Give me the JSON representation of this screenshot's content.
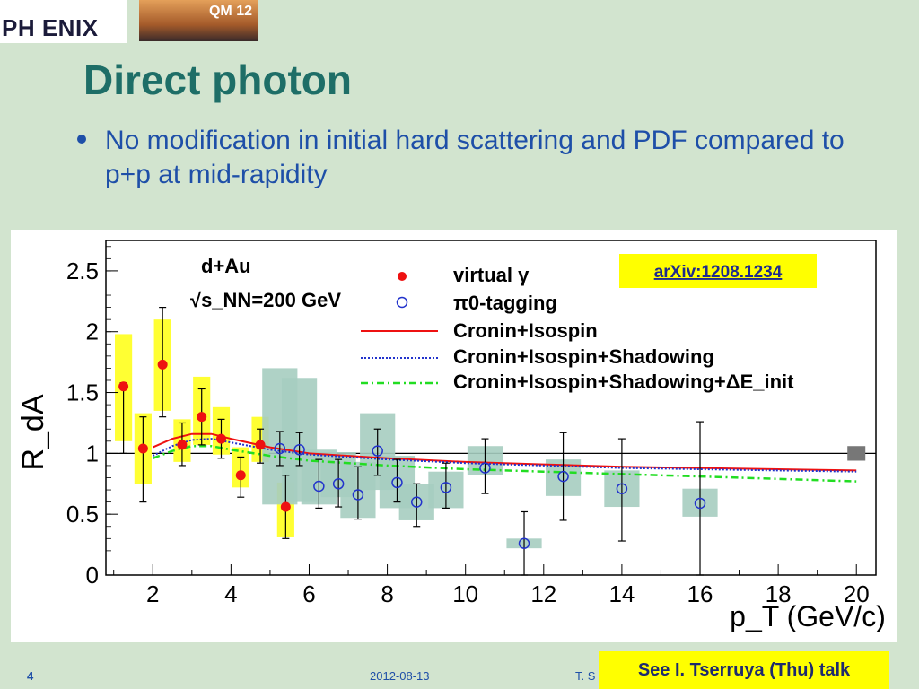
{
  "logo_text": "PH ENIX",
  "conf_badge": "QM 12",
  "title": "Direct photon",
  "bullet": "No modification in initial hard scattering and PDF compared to p+p at mid-rapidity",
  "footer": {
    "page": "4",
    "date": "2012-08-13",
    "author": "T. S",
    "talk": "See I. Tserruya (Thu) talk"
  },
  "chart_data": {
    "type": "scatter",
    "xlabel": "p_T (GeV/c)",
    "ylabel": "R_dA",
    "xlim": [
      0.8,
      20.5
    ],
    "ylim": [
      0,
      2.75
    ],
    "xticks": [
      "2",
      "4",
      "6",
      "8",
      "10",
      "12",
      "14",
      "16",
      "18",
      "20"
    ],
    "yticks": [
      "0",
      "0.5",
      "1",
      "1.5",
      "2",
      "2.5"
    ],
    "system_label": "d+Au",
    "energy_label": "√s_NN=200 GeV",
    "arxiv": "arXiv:1208.1234",
    "legend": [
      "virtual γ",
      "π0-tagging",
      "Cronin+Isospin",
      "Cronin+Isospin+Shadowing",
      "Cronin+Isospin+Shadowing+ΔE_init"
    ],
    "series": [
      {
        "name": "virtual γ",
        "marker": "filled-circle",
        "color": "#ee1111",
        "syscolor": "#ffff33",
        "points": [
          {
            "x": 1.25,
            "y": 1.55,
            "elo": 1.0,
            "ehi": 1.58,
            "slo": 1.1,
            "shi": 1.98,
            "sw": 0.22
          },
          {
            "x": 1.75,
            "y": 1.04,
            "elo": 0.6,
            "ehi": 1.3,
            "slo": 0.75,
            "shi": 1.33,
            "sw": 0.22
          },
          {
            "x": 2.25,
            "y": 1.73,
            "elo": 1.3,
            "ehi": 2.2,
            "slo": 1.35,
            "shi": 2.1,
            "sw": 0.22
          },
          {
            "x": 2.75,
            "y": 1.07,
            "elo": 0.9,
            "ehi": 1.25,
            "slo": 0.93,
            "shi": 1.28,
            "sw": 0.22
          },
          {
            "x": 3.25,
            "y": 1.3,
            "elo": 1.07,
            "ehi": 1.53,
            "slo": 1.07,
            "shi": 1.63,
            "sw": 0.22
          },
          {
            "x": 3.75,
            "y": 1.12,
            "elo": 0.96,
            "ehi": 1.28,
            "slo": 0.99,
            "shi": 1.38,
            "sw": 0.22
          },
          {
            "x": 4.25,
            "y": 0.82,
            "elo": 0.64,
            "ehi": 0.97,
            "slo": 0.72,
            "shi": 1.05,
            "sw": 0.22
          },
          {
            "x": 4.75,
            "y": 1.07,
            "elo": 0.92,
            "ehi": 1.2,
            "slo": 0.93,
            "shi": 1.3,
            "sw": 0.22
          },
          {
            "x": 5.4,
            "y": 0.56,
            "elo": 0.3,
            "ehi": 0.82,
            "slo": 0.31,
            "shi": 0.76,
            "sw": 0.22
          }
        ]
      },
      {
        "name": "π0-tagging",
        "marker": "open-circle",
        "color": "#2233cc",
        "syscolor": "#a6cdc0",
        "points": [
          {
            "x": 5.25,
            "y": 1.04,
            "elo": 0.9,
            "ehi": 1.18,
            "slo": 0.58,
            "shi": 1.7,
            "sw": 0.45
          },
          {
            "x": 5.75,
            "y": 1.03,
            "elo": 0.9,
            "ehi": 1.17,
            "slo": 0.6,
            "shi": 1.62,
            "sw": 0.45
          },
          {
            "x": 6.25,
            "y": 0.73,
            "elo": 0.55,
            "ehi": 0.95,
            "slo": 0.58,
            "shi": 1.03,
            "sw": 0.45
          },
          {
            "x": 6.75,
            "y": 0.75,
            "elo": 0.56,
            "ehi": 0.95,
            "slo": 0.64,
            "shi": 1.01,
            "sw": 0.45
          },
          {
            "x": 7.25,
            "y": 0.66,
            "elo": 0.46,
            "ehi": 0.89,
            "slo": 0.47,
            "shi": 0.93,
            "sw": 0.45
          },
          {
            "x": 7.75,
            "y": 1.02,
            "elo": 0.82,
            "ehi": 1.2,
            "slo": 0.7,
            "shi": 1.33,
            "sw": 0.45
          },
          {
            "x": 8.25,
            "y": 0.76,
            "elo": 0.6,
            "ehi": 0.95,
            "slo": 0.55,
            "shi": 0.98,
            "sw": 0.45
          },
          {
            "x": 8.75,
            "y": 0.6,
            "elo": 0.4,
            "ehi": 0.75,
            "slo": 0.45,
            "shi": 0.75,
            "sw": 0.45
          },
          {
            "x": 9.5,
            "y": 0.72,
            "elo": 0.55,
            "ehi": 0.92,
            "slo": 0.55,
            "shi": 0.85,
            "sw": 0.45
          },
          {
            "x": 10.5,
            "y": 0.88,
            "elo": 0.67,
            "ehi": 1.12,
            "slo": 0.82,
            "shi": 1.06,
            "sw": 0.45
          },
          {
            "x": 11.5,
            "y": 0.26,
            "elo": 0.0,
            "ehi": 0.52,
            "slo": 0.22,
            "shi": 0.3,
            "sw": 0.45
          },
          {
            "x": 12.5,
            "y": 0.81,
            "elo": 0.45,
            "ehi": 1.17,
            "slo": 0.65,
            "shi": 0.95,
            "sw": 0.45
          },
          {
            "x": 14.0,
            "y": 0.71,
            "elo": 0.28,
            "ehi": 1.12,
            "slo": 0.56,
            "shi": 0.86,
            "sw": 0.45
          },
          {
            "x": 16.0,
            "y": 0.59,
            "elo": 0.0,
            "ehi": 1.26,
            "slo": 0.48,
            "shi": 0.71,
            "sw": 0.45
          }
        ]
      }
    ],
    "curves": [
      {
        "name": "Cronin+Isospin",
        "color": "#ee1111",
        "style": "solid",
        "x": [
          2,
          2.5,
          3,
          3.5,
          4,
          5,
          6,
          8,
          10,
          12,
          14,
          16,
          18,
          20
        ],
        "y": [
          1.05,
          1.12,
          1.16,
          1.16,
          1.12,
          1.05,
          1.0,
          0.96,
          0.93,
          0.91,
          0.89,
          0.88,
          0.87,
          0.86
        ]
      },
      {
        "name": "Cronin+Isospin+Shadowing",
        "color": "#2233cc",
        "style": "dotted",
        "x": [
          2,
          2.5,
          3,
          3.5,
          4,
          5,
          6,
          8,
          10,
          12,
          14,
          16,
          18,
          20
        ],
        "y": [
          0.98,
          1.06,
          1.11,
          1.12,
          1.09,
          1.03,
          0.99,
          0.95,
          0.92,
          0.9,
          0.88,
          0.87,
          0.86,
          0.85
        ]
      },
      {
        "name": "Cronin+Isospin+Shadowing+ΔE_init",
        "color": "#22dd22",
        "style": "dashdot",
        "x": [
          2,
          2.5,
          3,
          3.5,
          4,
          5,
          6,
          8,
          10,
          12,
          14,
          16,
          18,
          20
        ],
        "y": [
          0.96,
          1.02,
          1.06,
          1.06,
          1.03,
          0.98,
          0.94,
          0.9,
          0.87,
          0.85,
          0.83,
          0.81,
          0.79,
          0.77
        ]
      }
    ],
    "norm_box": {
      "x": 20.0,
      "lo": 0.94,
      "hi": 1.06
    }
  }
}
